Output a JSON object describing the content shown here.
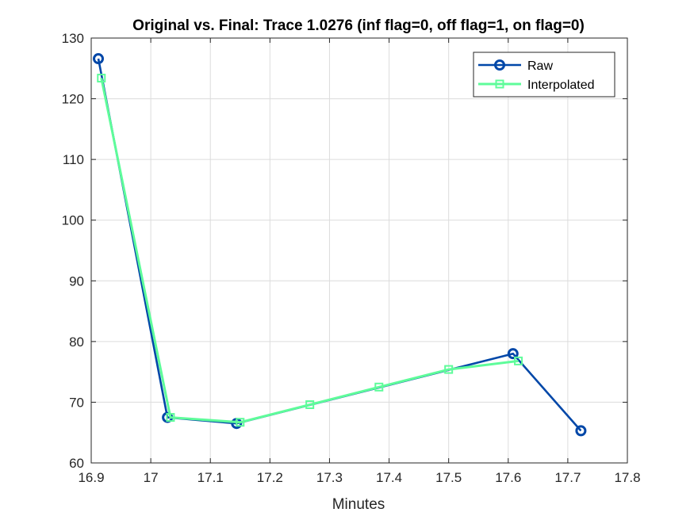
{
  "chart_data": {
    "type": "line",
    "title": "Original vs. Final: Trace 1.0276 (inf flag=0, off flag=1, on flag=0)",
    "xlabel": "Minutes",
    "ylabel": "",
    "xlim": [
      16.9,
      17.8
    ],
    "ylim": [
      60,
      130
    ],
    "xticks": [
      16.9,
      17.0,
      17.1,
      17.2,
      17.3,
      17.4,
      17.5,
      17.6,
      17.7,
      17.8
    ],
    "xtick_labels": [
      "16.9",
      "17",
      "17.1",
      "17.2",
      "17.3",
      "17.4",
      "17.5",
      "17.6",
      "17.7",
      "17.8"
    ],
    "yticks": [
      60,
      70,
      80,
      90,
      100,
      110,
      120,
      130
    ],
    "ytick_labels": [
      "60",
      "70",
      "80",
      "90",
      "100",
      "110",
      "120",
      "130"
    ],
    "grid": true,
    "legend_position": "top-right",
    "series": [
      {
        "name": "Raw",
        "color": "#0047a8",
        "marker": "circle",
        "x": [
          16.912,
          17.028,
          17.144,
          17.608,
          17.722
        ],
        "y": [
          126.6,
          67.5,
          66.5,
          78.0,
          65.3
        ]
      },
      {
        "name": "Interpolated",
        "color": "#5efc9a",
        "marker": "square",
        "x": [
          16.917,
          17.033,
          17.15,
          17.267,
          17.383,
          17.5,
          17.617
        ],
        "y": [
          123.4,
          67.5,
          66.7,
          69.6,
          72.5,
          75.4,
          76.8
        ]
      }
    ]
  }
}
